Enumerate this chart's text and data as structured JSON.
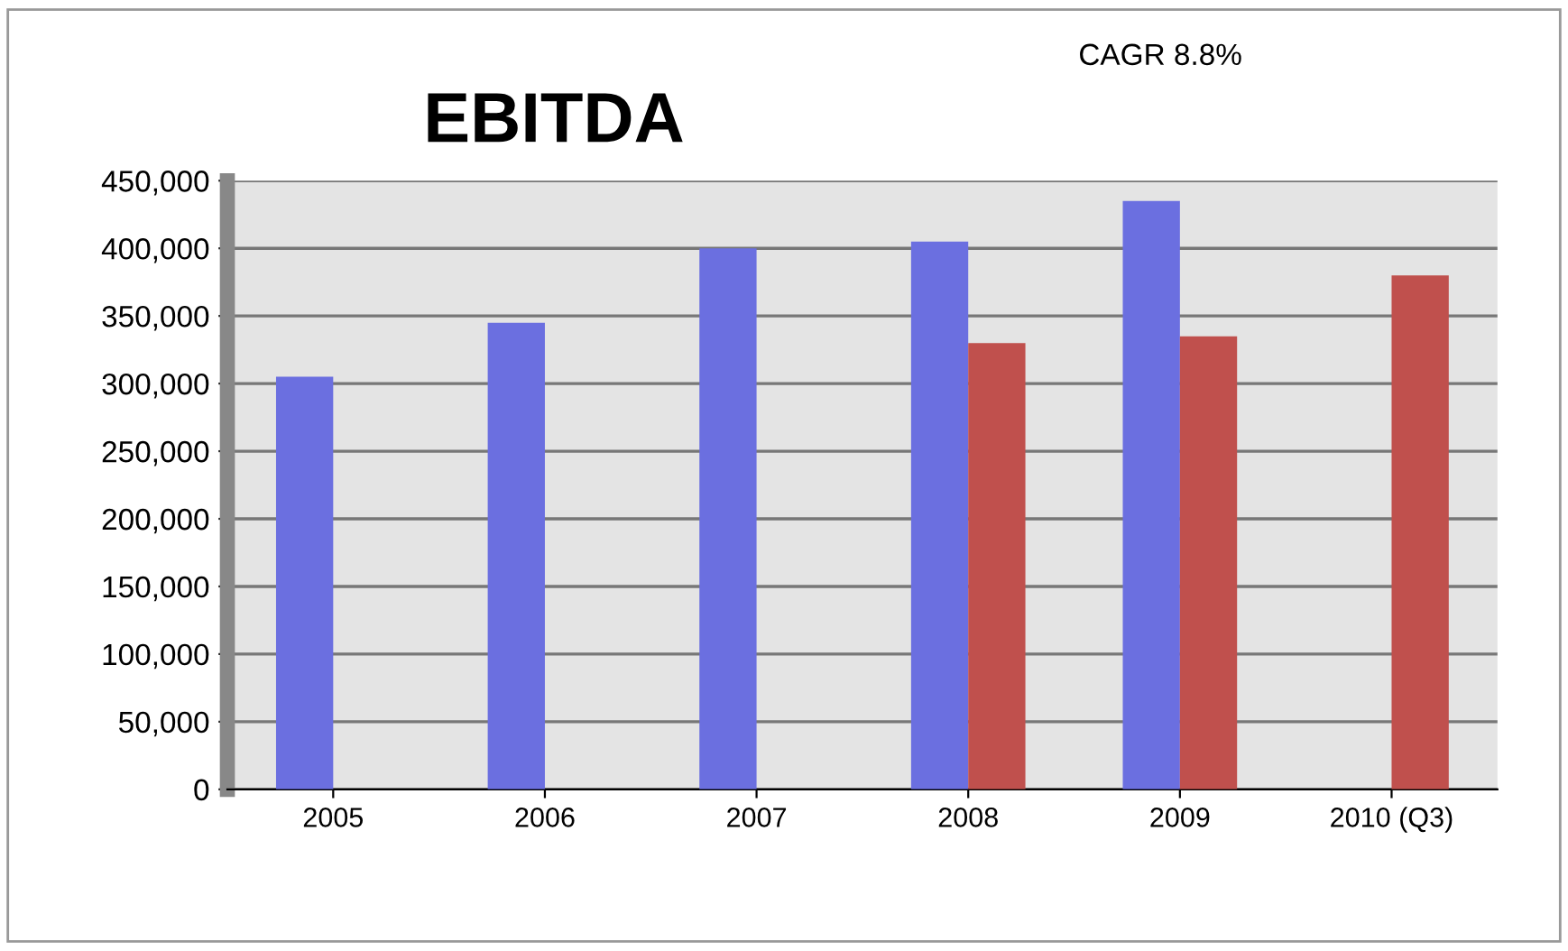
{
  "chart_data": {
    "type": "bar",
    "title": "EBITDA",
    "annotations": [
      "CAGR 8.8%"
    ],
    "categories": [
      "2005",
      "2006",
      "2007",
      "2008",
      "2009",
      "2010 (Q3)"
    ],
    "series": [
      {
        "color": "#6b6fe0",
        "values": [
          305000,
          345000,
          400000,
          405000,
          435000,
          null
        ]
      },
      {
        "color": "#c0504d",
        "values": [
          null,
          null,
          null,
          330000,
          335000,
          380000
        ]
      }
    ],
    "ylim": [
      0,
      450000
    ],
    "yticks": [
      {
        "value": 0,
        "label": "0"
      },
      {
        "value": 50000,
        "label": "50,000"
      },
      {
        "value": 100000,
        "label": "100,000"
      },
      {
        "value": 150000,
        "label": "150,000"
      },
      {
        "value": 200000,
        "label": "200,000"
      },
      {
        "value": 250000,
        "label": "250,000"
      },
      {
        "value": 300000,
        "label": "300,000"
      },
      {
        "value": 350000,
        "label": "350,000"
      },
      {
        "value": 400000,
        "label": "400,000"
      },
      {
        "value": 450000,
        "label": "450,000"
      }
    ],
    "grid": "y",
    "legend": false
  }
}
